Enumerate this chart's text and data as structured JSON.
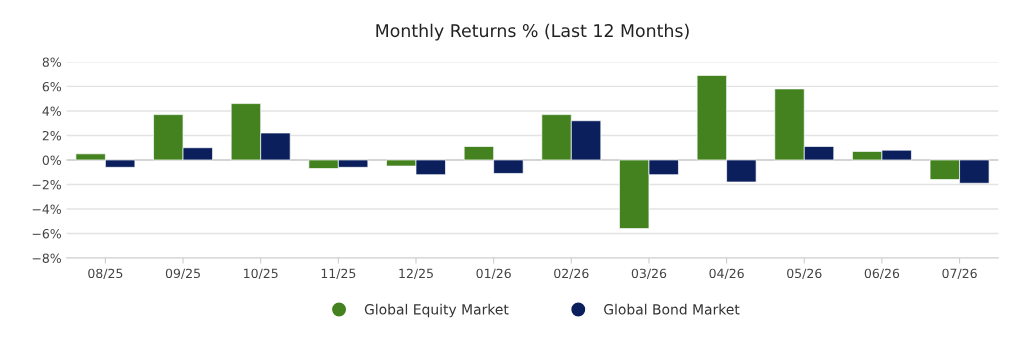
{
  "chart_data": {
    "type": "bar",
    "title": "Monthly Returns % (Last 12 Months)",
    "categories": [
      "08/25",
      "09/25",
      "10/25",
      "11/25",
      "12/25",
      "01/26",
      "02/26",
      "03/26",
      "04/26",
      "05/26",
      "06/26",
      "07/26"
    ],
    "series": [
      {
        "name": "Global Equity Market",
        "color": "#43821f",
        "values": [
          0.5,
          3.7,
          4.6,
          -0.7,
          -0.5,
          1.1,
          3.7,
          -5.6,
          6.9,
          5.8,
          0.7,
          -1.6
        ]
      },
      {
        "name": "Global Bond Market",
        "color": "#0a1f5c",
        "values": [
          -0.6,
          1.0,
          2.2,
          -0.6,
          -1.2,
          -1.1,
          3.2,
          -1.2,
          -1.8,
          1.1,
          0.8,
          -1.9
        ]
      }
    ],
    "ylim": [
      -8,
      8
    ],
    "yticks": [
      {
        "value": -8,
        "label": "−8%"
      },
      {
        "value": -6,
        "label": "−6%"
      },
      {
        "value": -4,
        "label": "−4%"
      },
      {
        "value": -2,
        "label": "−2%"
      },
      {
        "value": 0,
        "label": "0%"
      },
      {
        "value": 2,
        "label": "2%"
      },
      {
        "value": 4,
        "label": "4%"
      },
      {
        "value": 6,
        "label": "6%"
      },
      {
        "value": 8,
        "label": "8%"
      }
    ],
    "grid": "y",
    "legend": "bottom"
  }
}
